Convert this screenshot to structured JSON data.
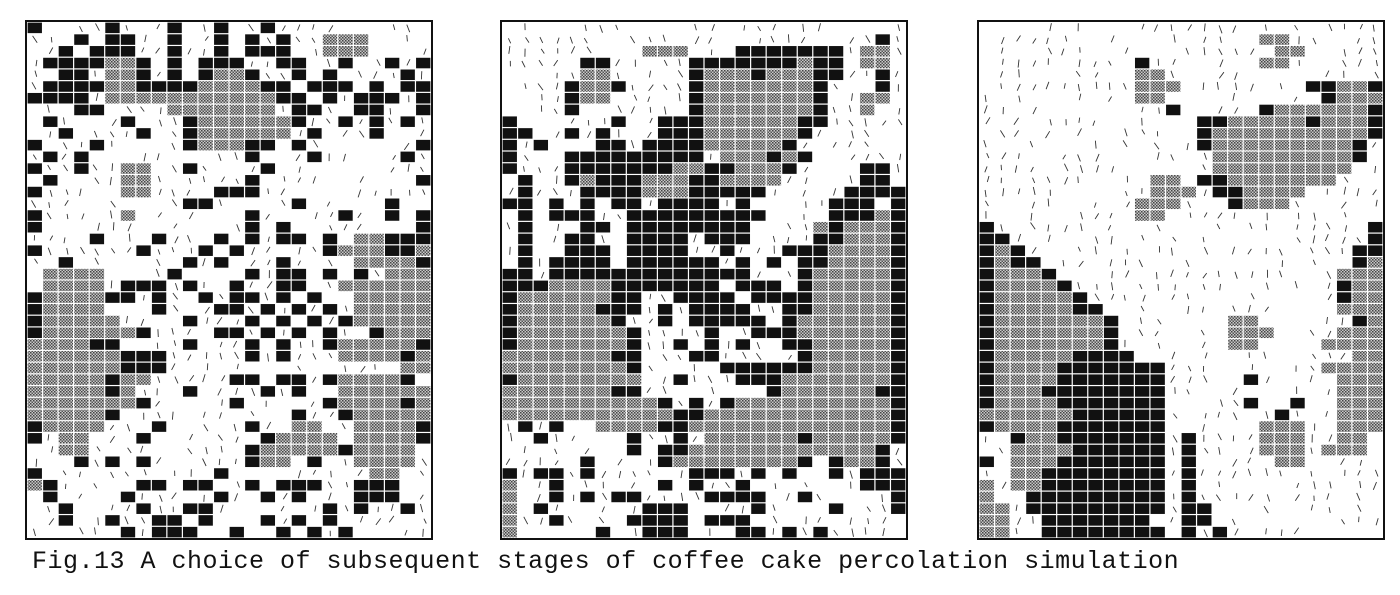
{
  "caption": "Fig.13 A choice of subsequent stages of coffee cake percolation simulation",
  "legend_colors": {
    "solid": "#111111",
    "hatched": "#8f8f8f",
    "flow": "#333333",
    "background": "#ffffff"
  },
  "panels": [
    {
      "name": "stage-1",
      "grid": [
        "D....D...D..D..D..........",
        "...D.DD..D..D.D.D..HHH....",
        "..D.DDD..D..D.DDD..HHH....",
        ".DDDDHHD.D.DDD..DD..D..D.D",
        "..DD.HHD.D.DHHD..D.D....D.",
        ".DDDDHHDDDDHHHHDD.DDD.D.DD",
        "DDDD.HHHHHHHHHHHDD.D.DDD.D",
        "...DD....HHHHHHH.DD..DD..D",
        ".D....D...DHHHHHHD..D.D.D.",
        "..D....D..DHHHHHH.D...D...",
        "D...D.....DHHHDD.D.......D",
        ".D.D..........D...D.....D.",
        "D..D..HH..D....D..........",
        ".D....HH......D..........D",
        "D.....HH....DDD...........",
        "..........DD.....D.....D..",
        "D.....H.......D.....D..D.D",
        "D.............D.D........D",
        "....D...D...D.D.DD.D.HHDDD",
        "D......D...D.D.....DHHHDDH",
        "..D.......D.D...D....HHHHD",
        ".HHHH....D....D.DD.D.D.HHH",
        ".HHHH.DDD.D..D..DD..HHHHHH",
        "DHHHHDD.D..D.DD.D.D..HHHHH",
        "DHHHH...D...DD.D.D.D.HHHHH",
        "DHHHHH....D...D.D.D.DHHHHH",
        "DHHHHHHD....DD.D.D.D..DHHH",
        "HHHHDD....D...D.D..DHHHHHD",
        "HHHHHHDDD.....D.D...HHHHDH",
        "HHHHHHDDD...............HHH",
        "HHHHHDHH.....DD.DD.DHHHHD.",
        "HHHHHDH...D....D.D..HHHHHH",
        "HHHHHHHD.....D.....DHHHHDH",
        "HHHHHD...........D..DHHHHH",
        "DHHHH...D.....D..HH..HHHHD",
        "D.HH...D.......DHHHH.HHHHD",
        "..HH..........DHHHHHDHHHH.",
        "...D.D.D......DHH.D..HHHH.",
        "D...........D.........HH..",
        "HD.....DD.DD..D.DDD..DDD..",
        ".D....D.....D..D.D...DDD..",
        "..D....D..DD.......D.D..D.",
        "..D..D..DD.D...D.D.D......",
        "......D.DDD..D..D.D.D....."
      ]
    },
    {
      "name": "stage-2",
      "grid": [
        "..........................",
        "........................D.",
        ".........HHH...DDDDDDD.HH.",
        ".....DD.....DDDDDDDHDD.HH.",
        ".....HH.....DHHHDHHHDD..D.",
        "....DHHD....DHHHHHHHD...D.",
        "....DHH.....DHHHHHHHD..HH.",
        "....D.......DHHHHHHHD..H..",
        "D......D..DDDHHHHHHDD.....",
        "DD..D.D...DDDHHHHHHD......",
        "D.D...DD.DDDDHHHHHD.......",
        "D...DDDDDDDDD.HHHDHD......",
        "D...DDDDDDDHHDDHHHD....DD.",
        ".D..DHDDDHHHDDHHHH.....DD.",
        ".D...DDDDHHHDDDDD.....DDDD",
        "DD.D.D.DD.DDDD.D.....DDD.D",
        ".D.DDD..DDDDDDDDD....DDDHD",
        ".D...DD.DDDDDDDD....HDHHHD",
        ".D..DD..DDDD.DDD....DDHHHD",
        ".D..DDD.DDDD..D...DDDHHHHD",
        ".D.DDDD.DDDDDD.D.D.DDHHHHD",
        "DD.DDDDDDDDDDDDD...DHHHHHD",
        "DDDHHHHDDDDDDD.DDD.DHHHHHD",
        "DHHHHHHDD..DDDD.DDDDHHHHHD",
        "DHHHHHDDD.D.DDDD..DDHHHHHD",
        "DHHHHHHD..D.DDDDD.DHHHHHHD",
        "DHHHHHHHD....D..DDDHHHHHHD",
        "DHHHHHHHD..D.D.D..DDHHHHHD",
        "HHHHHHHDD...DD.....DHHHHHD",
        "HHHHHHHHD.....DDDDDDHHHHHD",
        "DHHHHHHHH..D...DDDHHHHHHHD",
        "HHHHHHHDD........DHHHHHHDD",
        "HHHHHHHHHHD.D.DHHHHHHHHHHD",
        "HHHHHHHHHHHDDHHHHHHHHHHHHD",
        ".D.D..HHHHDDHHHHHHHHHHHHHD",
        "..D.....D..D.HHHHHHDHHHHHD",
        "........D.DDHHHHHHHHHHHHD.",
        ".....D....DHHHHHHHHD.DHHD.",
        "D.DD.D......DDD.D.D..D.DDD",
        "H..D......D.D..D.......DDD",
        "H..D.D.DD....DDDD..D.....D",
        "H.D......DDD....D....D...D",
        "H..D....DDDD.DDD..........",
        "H.....D..DDD...DD.D.D....."
      ]
    },
    {
      "name": "stage-3",
      "grid": [
        "..........................",
        "..................HH......",
        "...................HH.....",
        "..........D.......HH......",
        "..........HH..............",
        "..........HHH........DDHHD",
        "..........HH..........DHHH",
        "............D.....DHHHHHHD",
        "..............DDHHHHHDHHHD",
        "..............DHHHHHHHHHHD",
        "..............DHHHHHHHHHD.",
        "...............HHHHHHHHHD.",
        "...............HHHHHHHHH..",
        "...........HH.DDHHHHHHH...",
        "...........HHH.DDHHHH.....",
        "..........HHH...DHHH......",
        "..........HH..............",
        "D........................D",
        "DD.......................D",
        "DHD.....................DD",
        "DHDD....................DH",
        "DHHHD..................HHH",
        "DHHHHD.................DHH",
        "DHHHHHD................DHH",
        "DHHHHHDD...............HHH",
        "DHHHHHHHD.......HH......DH",
        "DHHHHHHHD.......HHH....HHH",
        "DHHHHHHHD.......HH....HHHH",
        "DHHHHHDDDD..............HHH",
        "DHHHHDDDDDDD..........HHHH",
        "DHHHHDDDDDDD.....D.....HHHH",
        "DHHHDDDDDDDD...........HHH",
        "DHHHHDDDDDDD.....D..D..HHH",
        "HHHHHHDDDDDD.......D...HHH",
        "DHHHHDDDDDDD......HHH..HHH",
        "..DHHDDDDDDD.D....HHH..HH.",
        "..HHHHDDDDDD.D....HHH.HHH.",
        "D.HHHDDDDDDD.D.....HH.....",
        "..HHDDDDDDDD.D............",
        "H.HHDDDDDDDD.D............",
        "H..DDDDDDDDD.D............",
        "HH.DDDDDDDDD.DD...........",
        "HH..DDDDDDD..DD...........",
        "HH..DDDDDDDD.D.D.........."
      ]
    }
  ]
}
